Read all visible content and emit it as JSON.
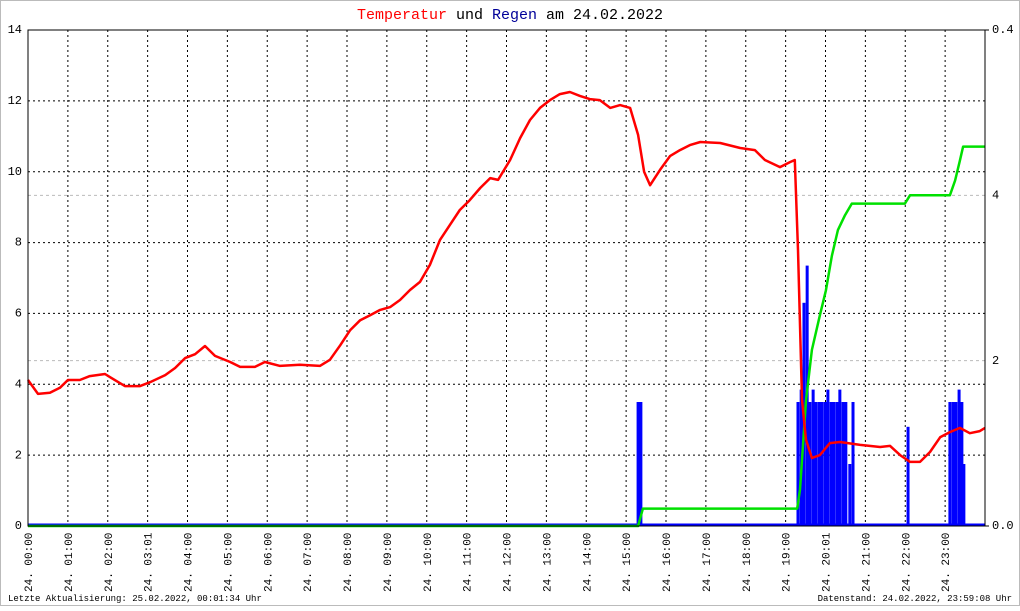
{
  "chart_data": {
    "type": "line",
    "title": {
      "temp": "Temperatur",
      "join": "und",
      "rain": "Regen",
      "date": "am 24.02.2022"
    },
    "footer_left": "Letzte Aktualisierung: 25.02.2022, 00:01:34 Uhr",
    "footer_right": "Datenstand: 24.02.2022, 23:59:08 Uhr",
    "xlim": [
      0,
      24
    ],
    "xticks": [
      {
        "value": 0,
        "label": "24. 00:00"
      },
      {
        "value": 1,
        "label": "24. 01:00"
      },
      {
        "value": 2,
        "label": "24. 02:00"
      },
      {
        "value": 3,
        "label": "24. 03:01"
      },
      {
        "value": 4,
        "label": "24. 04:00"
      },
      {
        "value": 5,
        "label": "24. 05:00"
      },
      {
        "value": 6,
        "label": "24. 06:00"
      },
      {
        "value": 7,
        "label": "24. 07:00"
      },
      {
        "value": 8,
        "label": "24. 08:00"
      },
      {
        "value": 9,
        "label": "24. 09:00"
      },
      {
        "value": 10,
        "label": "24. 10:00"
      },
      {
        "value": 11,
        "label": "24. 11:00"
      },
      {
        "value": 12,
        "label": "24. 12:00"
      },
      {
        "value": 13,
        "label": "24. 13:00"
      },
      {
        "value": 14,
        "label": "24. 14:00"
      },
      {
        "value": 15,
        "label": "24. 15:00"
      },
      {
        "value": 16,
        "label": "24. 16:00"
      },
      {
        "value": 17,
        "label": "24. 17:00"
      },
      {
        "value": 18,
        "label": "24. 18:00"
      },
      {
        "value": 19,
        "label": "24. 19:00"
      },
      {
        "value": 20,
        "label": "24. 20:01"
      },
      {
        "value": 21,
        "label": "24. 21:00"
      },
      {
        "value": 22,
        "label": "24. 22:00"
      },
      {
        "value": 23,
        "label": "24. 23:00"
      }
    ],
    "ylim": [
      0,
      14
    ],
    "yticks": [
      0,
      2,
      4,
      6,
      8,
      10,
      12,
      14
    ],
    "y2lim": [
      0,
      6
    ],
    "y2ticks": [
      2,
      4
    ],
    "y3lim": [
      0,
      0.4
    ],
    "y3ticks": [
      {
        "value": 0,
        "label": "0.0"
      },
      {
        "value": 0.4,
        "label": "0.4"
      }
    ],
    "grid": true,
    "series": [
      {
        "type": "bar",
        "color": "#0000ff",
        "axis": "y3",
        "x": [
          15.3,
          15.37,
          19.31,
          19.39,
          19.46,
          19.54,
          19.61,
          19.69,
          19.76,
          19.84,
          19.91,
          19.99,
          20.06,
          20.14,
          20.21,
          20.29,
          20.36,
          20.44,
          20.51,
          20.61,
          20.69,
          22.07,
          23.12,
          23.2,
          23.27,
          23.35,
          23.42,
          23.47
        ],
        "values": [
          0.1,
          0.1,
          0.1,
          0.11,
          0.18,
          0.21,
          0.1,
          0.11,
          0.1,
          0.1,
          0.1,
          0.1,
          0.11,
          0.1,
          0.1,
          0.1,
          0.11,
          0.1,
          0.1,
          0.05,
          0.1,
          0.08,
          0.1,
          0.1,
          0.1,
          0.11,
          0.1,
          0.05
        ]
      },
      {
        "type": "line",
        "color": "#00e000",
        "axis": "y2",
        "x": [
          0,
          15.3,
          15.42,
          19.29,
          19.36,
          19.51,
          19.66,
          19.86,
          20.01,
          20.16,
          20.31,
          20.49,
          20.66,
          21.99,
          22.12,
          23.12,
          23.25,
          23.37,
          23.45,
          24
        ],
        "values": [
          0,
          0,
          0.21,
          0.21,
          0.44,
          1.52,
          2.13,
          2.55,
          2.85,
          3.27,
          3.58,
          3.76,
          3.9,
          3.9,
          4.0,
          4.0,
          4.18,
          4.42,
          4.59,
          4.59
        ]
      },
      {
        "type": "line",
        "color": "#ff0000",
        "axis": "y",
        "x": [
          0,
          0.25,
          0.55,
          0.8,
          1.0,
          1.3,
          1.55,
          1.93,
          2.06,
          2.43,
          2.81,
          3.06,
          3.44,
          3.69,
          3.94,
          4.19,
          4.44,
          4.69,
          5.07,
          5.32,
          5.69,
          5.94,
          6.32,
          6.82,
          7.32,
          7.57,
          7.83,
          8.08,
          8.33,
          8.58,
          8.83,
          9.08,
          9.33,
          9.58,
          9.83,
          10.08,
          10.33,
          10.58,
          10.83,
          11.08,
          11.34,
          11.59,
          11.79,
          12.09,
          12.34,
          12.59,
          12.84,
          13.09,
          13.34,
          13.59,
          13.84,
          14.09,
          14.34,
          14.6,
          14.85,
          15.1,
          15.3,
          15.45,
          15.6,
          15.85,
          16.1,
          16.35,
          16.6,
          16.86,
          17.36,
          17.86,
          18.23,
          18.48,
          18.86,
          19.11,
          19.23,
          19.31,
          19.41,
          19.51,
          19.66,
          19.86,
          20.11,
          20.36,
          20.87,
          21.37,
          21.62,
          21.87,
          22.12,
          22.37,
          22.62,
          22.88,
          23.12,
          23.37,
          23.62,
          23.87,
          24.0
        ],
        "values": [
          4.12,
          3.73,
          3.76,
          3.9,
          4.12,
          4.12,
          4.23,
          4.29,
          4.2,
          3.95,
          3.95,
          4.06,
          4.26,
          4.46,
          4.74,
          4.85,
          5.08,
          4.8,
          4.63,
          4.49,
          4.49,
          4.63,
          4.52,
          4.55,
          4.52,
          4.69,
          5.1,
          5.53,
          5.81,
          5.95,
          6.1,
          6.18,
          6.38,
          6.66,
          6.89,
          7.37,
          8.07,
          8.5,
          8.92,
          9.2,
          9.54,
          9.82,
          9.77,
          10.33,
          10.95,
          11.46,
          11.8,
          12.02,
          12.19,
          12.25,
          12.14,
          12.05,
          12.02,
          11.8,
          11.88,
          11.8,
          11.04,
          10.0,
          9.62,
          10.05,
          10.44,
          10.61,
          10.75,
          10.84,
          10.81,
          10.67,
          10.61,
          10.33,
          10.13,
          10.27,
          10.33,
          7.79,
          3.56,
          2.43,
          1.92,
          2.0,
          2.34,
          2.37,
          2.29,
          2.23,
          2.26,
          2.0,
          1.81,
          1.81,
          2.09,
          2.51,
          2.65,
          2.77,
          2.62,
          2.68,
          2.77
        ]
      }
    ]
  }
}
